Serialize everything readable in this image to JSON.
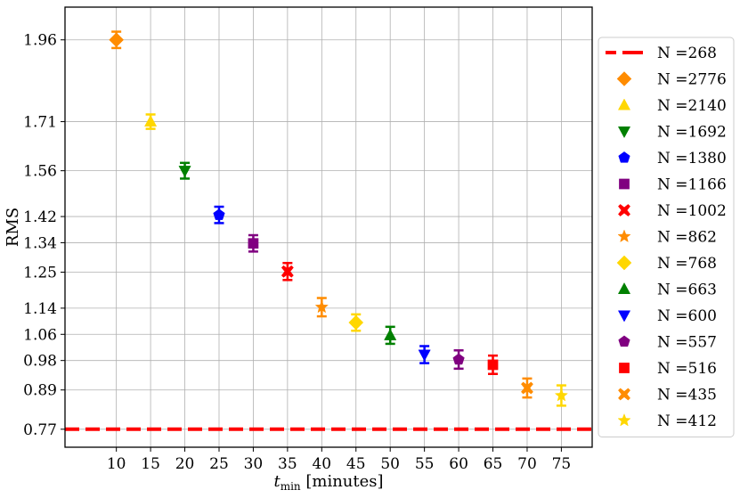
{
  "chart_data": {
    "type": "scatter",
    "title": "",
    "xlabel": "t_min [minutes]",
    "xlabel_main": "t",
    "xlabel_sub": "min",
    "xlabel_rest": " [minutes]",
    "ylabel": "RMS",
    "xlim": [
      2.5,
      79.5
    ],
    "ylim": [
      0.715,
      2.06
    ],
    "xticks": [
      10,
      15,
      20,
      25,
      30,
      35,
      40,
      45,
      50,
      55,
      60,
      65,
      70,
      75
    ],
    "yticks": [
      0.77,
      0.89,
      0.98,
      1.06,
      1.14,
      1.25,
      1.34,
      1.42,
      1.56,
      1.71,
      1.96
    ],
    "grid": true,
    "legend_position": "right",
    "reference_line": {
      "label": "N =268",
      "value": 0.77,
      "color": "#ff0000",
      "style": "dashed"
    },
    "series": [
      {
        "name": "N =2776",
        "x": 10,
        "y": 1.96,
        "err": 0.025,
        "marker": "diamond",
        "color": "#ff8c00"
      },
      {
        "name": "N =2140",
        "x": 15,
        "y": 1.71,
        "err": 0.022,
        "marker": "triangle-up",
        "color": "#ffd700"
      },
      {
        "name": "N =1692",
        "x": 20,
        "y": 1.56,
        "err": 0.024,
        "marker": "triangle-down",
        "color": "#008000"
      },
      {
        "name": "N =1380",
        "x": 25,
        "y": 1.425,
        "err": 0.025,
        "marker": "pentagon",
        "color": "#0000ff"
      },
      {
        "name": "N =1166",
        "x": 30,
        "y": 1.338,
        "err": 0.025,
        "marker": "square",
        "color": "#800080"
      },
      {
        "name": "N =1002",
        "x": 35,
        "y": 1.252,
        "err": 0.026,
        "marker": "x-filled",
        "color": "#ff0000"
      },
      {
        "name": "N =862",
        "x": 40,
        "y": 1.143,
        "err": 0.028,
        "marker": "star",
        "color": "#ff8c00"
      },
      {
        "name": "N =768",
        "x": 45,
        "y": 1.096,
        "err": 0.025,
        "marker": "diamond",
        "color": "#ffd700"
      },
      {
        "name": "N =663",
        "x": 50,
        "y": 1.057,
        "err": 0.026,
        "marker": "triangle-up",
        "color": "#008000"
      },
      {
        "name": "N =600",
        "x": 55,
        "y": 0.998,
        "err": 0.026,
        "marker": "triangle-down",
        "color": "#0000ff"
      },
      {
        "name": "N =557",
        "x": 60,
        "y": 0.983,
        "err": 0.028,
        "marker": "pentagon",
        "color": "#800080"
      },
      {
        "name": "N =516",
        "x": 65,
        "y": 0.967,
        "err": 0.028,
        "marker": "square",
        "color": "#ff0000"
      },
      {
        "name": "N =435",
        "x": 70,
        "y": 0.896,
        "err": 0.029,
        "marker": "x-filled",
        "color": "#ff8c00"
      },
      {
        "name": "N =412",
        "x": 75,
        "y": 0.873,
        "err": 0.031,
        "marker": "star",
        "color": "#ffd700"
      }
    ]
  }
}
